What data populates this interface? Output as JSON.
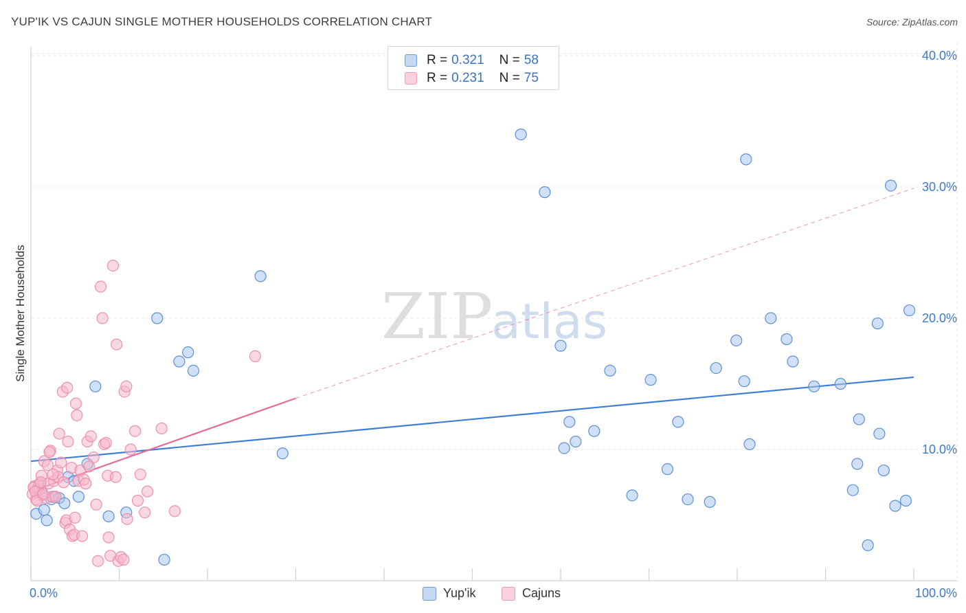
{
  "header": {
    "title": "YUP'IK VS CAJUN SINGLE MOTHER HOUSEHOLDS CORRELATION CHART",
    "source": "Source: ZipAtlas.com"
  },
  "legend": {
    "rows": [
      {
        "r_label": "R =",
        "r_value": "0.321",
        "n_label": "N =",
        "n_value": "58"
      },
      {
        "r_label": "R =",
        "r_value": "0.231",
        "n_label": "N =",
        "n_value": "75"
      }
    ]
  },
  "bottom_legend": {
    "items": [
      "Yup'ik",
      "Cajuns"
    ]
  },
  "watermark": {
    "zip": "ZIP",
    "atlas": "atlas"
  },
  "colors": {
    "yupik_fill": "#a9c6ee",
    "yupik_stroke": "#5b8fd6",
    "yupik_line": "#3f7fd4",
    "cajun_fill": "#f6b8cb",
    "cajun_stroke": "#ec8fae",
    "cajun_line": "#e46b97",
    "axis_text": "#3f78c8",
    "grid": "#e6e6e6"
  },
  "chart_data": {
    "type": "scatter",
    "title": "YUP'IK VS CAJUN SINGLE MOTHER HOUSEHOLDS CORRELATION CHART",
    "xlabel": "",
    "ylabel": "Single Mother Households",
    "xlim": [
      0,
      100
    ],
    "ylim": [
      0,
      42
    ],
    "x_tick_labels": [
      "0.0%",
      "100.0%"
    ],
    "y_ticks": [
      10,
      20,
      30,
      40
    ],
    "y_tick_labels": [
      "10.0%",
      "20.0%",
      "30.0%",
      "40.0%"
    ],
    "series": [
      {
        "name": "Yup'ik",
        "points": [
          [
            0.6,
            5.1
          ],
          [
            1.5,
            5.4
          ],
          [
            1.8,
            4.6
          ],
          [
            2.3,
            6.2
          ],
          [
            2.6,
            6.4
          ],
          [
            3.2,
            6.3
          ],
          [
            3.8,
            5.9
          ],
          [
            4.2,
            7.9
          ],
          [
            4.9,
            7.6
          ],
          [
            5.4,
            6.4
          ],
          [
            6.4,
            8.9
          ],
          [
            7.3,
            14.8
          ],
          [
            8.8,
            4.9
          ],
          [
            10.8,
            5.2
          ],
          [
            14.3,
            20.0
          ],
          [
            15.1,
            1.6
          ],
          [
            16.8,
            16.7
          ],
          [
            17.8,
            17.4
          ],
          [
            18.4,
            16.0
          ],
          [
            26.0,
            23.2
          ],
          [
            28.5,
            9.7
          ],
          [
            55.5,
            34.0
          ],
          [
            58.2,
            29.6
          ],
          [
            60.0,
            17.9
          ],
          [
            60.4,
            10.1
          ],
          [
            61.0,
            12.1
          ],
          [
            61.7,
            10.6
          ],
          [
            63.8,
            11.4
          ],
          [
            65.6,
            16.0
          ],
          [
            68.1,
            6.5
          ],
          [
            70.2,
            15.3
          ],
          [
            72.1,
            8.5
          ],
          [
            73.3,
            12.1
          ],
          [
            74.4,
            6.2
          ],
          [
            76.9,
            6.0
          ],
          [
            77.6,
            16.2
          ],
          [
            79.9,
            18.3
          ],
          [
            80.8,
            15.2
          ],
          [
            81.0,
            32.1
          ],
          [
            81.4,
            10.4
          ],
          [
            83.8,
            20.0
          ],
          [
            85.6,
            18.4
          ],
          [
            86.3,
            16.7
          ],
          [
            88.7,
            14.8
          ],
          [
            91.7,
            15.0
          ],
          [
            93.1,
            6.9
          ],
          [
            93.6,
            8.9
          ],
          [
            93.8,
            12.3
          ],
          [
            94.8,
            2.7
          ],
          [
            95.9,
            19.6
          ],
          [
            96.1,
            11.2
          ],
          [
            96.6,
            8.4
          ],
          [
            97.4,
            30.1
          ],
          [
            97.9,
            5.7
          ],
          [
            99.1,
            6.1
          ],
          [
            99.5,
            20.6
          ],
          [
            1.2,
            6.8
          ],
          [
            0.9,
            7.3
          ]
        ]
      },
      {
        "name": "Cajuns",
        "points": [
          [
            0.2,
            6.6
          ],
          [
            0.4,
            7.2
          ],
          [
            0.6,
            6.2
          ],
          [
            0.8,
            7.0
          ],
          [
            1.0,
            7.4
          ],
          [
            1.2,
            8.0
          ],
          [
            1.3,
            6.5
          ],
          [
            1.5,
            9.1
          ],
          [
            1.7,
            6.3
          ],
          [
            1.9,
            8.8
          ],
          [
            2.0,
            7.4
          ],
          [
            2.2,
            9.9
          ],
          [
            2.4,
            6.4
          ],
          [
            2.6,
            7.6
          ],
          [
            2.8,
            6.4
          ],
          [
            3.0,
            8.4
          ],
          [
            3.1,
            7.9
          ],
          [
            3.2,
            11.2
          ],
          [
            3.4,
            9.0
          ],
          [
            3.6,
            14.4
          ],
          [
            3.7,
            7.5
          ],
          [
            3.9,
            4.4
          ],
          [
            4.0,
            4.6
          ],
          [
            4.1,
            14.7
          ],
          [
            4.2,
            10.6
          ],
          [
            4.4,
            3.9
          ],
          [
            4.6,
            8.6
          ],
          [
            4.7,
            3.4
          ],
          [
            4.9,
            3.5
          ],
          [
            5.0,
            4.8
          ],
          [
            5.1,
            13.5
          ],
          [
            5.2,
            12.6
          ],
          [
            5.4,
            7.6
          ],
          [
            5.6,
            8.4
          ],
          [
            5.8,
            3.4
          ],
          [
            6.0,
            7.7
          ],
          [
            6.2,
            7.4
          ],
          [
            6.4,
            10.6
          ],
          [
            6.8,
            11.0
          ],
          [
            7.1,
            9.4
          ],
          [
            7.4,
            5.8
          ],
          [
            7.6,
            1.5
          ],
          [
            7.9,
            22.4
          ],
          [
            8.1,
            20.0
          ],
          [
            8.3,
            10.4
          ],
          [
            8.5,
            10.5
          ],
          [
            8.7,
            8.0
          ],
          [
            8.8,
            3.3
          ],
          [
            9.0,
            1.9
          ],
          [
            9.3,
            24.0
          ],
          [
            9.6,
            7.9
          ],
          [
            9.7,
            18.0
          ],
          [
            9.9,
            1.5
          ],
          [
            10.2,
            1.8
          ],
          [
            10.5,
            1.6
          ],
          [
            10.6,
            14.4
          ],
          [
            10.8,
            14.8
          ],
          [
            10.9,
            4.7
          ],
          [
            11.3,
            10.0
          ],
          [
            11.8,
            11.4
          ],
          [
            12.1,
            6.1
          ],
          [
            12.4,
            8.1
          ],
          [
            12.9,
            5.2
          ],
          [
            13.2,
            6.8
          ],
          [
            14.8,
            11.6
          ],
          [
            16.3,
            5.3
          ],
          [
            25.4,
            17.1
          ],
          [
            0.3,
            7.1
          ],
          [
            0.5,
            6.8
          ],
          [
            0.7,
            6.1
          ],
          [
            1.1,
            7.5
          ],
          [
            1.4,
            6.6
          ],
          [
            2.1,
            9.8
          ],
          [
            2.5,
            8.1
          ],
          [
            6.6,
            8.7
          ]
        ]
      }
    ],
    "trend_lines": [
      {
        "series": "Yup'ik",
        "from": [
          0,
          9.1
        ],
        "to": [
          100,
          15.5
        ],
        "style": "solid"
      },
      {
        "series": "Cajuns",
        "from": [
          0,
          6.8
        ],
        "to": [
          30,
          13.9
        ],
        "style": "solid"
      },
      {
        "series": "Cajuns",
        "from": [
          30,
          13.9
        ],
        "to": [
          100,
          29.9
        ],
        "style": "dashed"
      }
    ]
  }
}
